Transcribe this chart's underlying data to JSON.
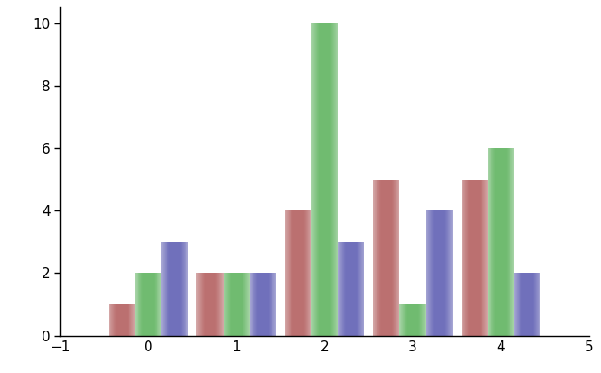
{
  "groups": [
    0,
    1,
    2,
    3,
    4
  ],
  "series": {
    "red": [
      1,
      2,
      4,
      5,
      5
    ],
    "green": [
      2,
      2,
      10,
      1,
      6
    ],
    "blue": [
      3,
      2,
      3,
      4,
      2
    ]
  },
  "colors": {
    "red": "#bb7070",
    "green": "#70bb70",
    "blue": "#7070bb"
  },
  "bar_width": 0.3,
  "xlim": [
    -1,
    5
  ],
  "ylim": [
    0,
    10.5
  ],
  "xticks": [
    -1,
    0,
    1,
    2,
    3,
    4,
    5
  ],
  "yticks": [
    0,
    2,
    4,
    6,
    8,
    10
  ],
  "background_color": "#ffffff"
}
